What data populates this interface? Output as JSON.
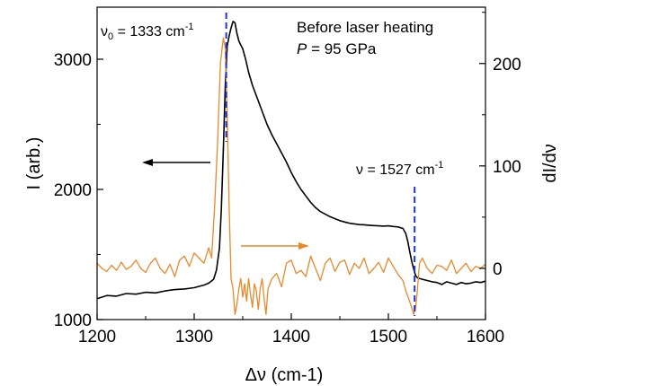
{
  "chart_data": {
    "type": "line",
    "xlabel": "Δν (cm-1)",
    "ylabel_left": "I (arb.)",
    "ylabel_right": "dI/dν",
    "xlim": [
      1200,
      1600
    ],
    "ylim_left": [
      1000,
      3400
    ],
    "ylim_right": [
      -50,
      255
    ],
    "x_ticks": [
      1200,
      1300,
      1400,
      1500,
      1600
    ],
    "y_left_ticks": [
      1000,
      2000,
      3000
    ],
    "y_right_ticks": [
      0,
      100,
      200
    ],
    "grid": false,
    "annotations": {
      "title_line1": "Before laser heating",
      "title_line2_var": "P",
      "title_line2_rest": " = 95 GPa",
      "nu0_label": "ν",
      "nu0_sub": "0",
      "nu0_value": " = 1333 cm",
      "nu0_exp": "-1",
      "nu_label": "ν = 1527 cm",
      "nu_exp": "-1"
    },
    "markers": [
      {
        "x": 1333,
        "color": "#1f35d6",
        "style": "dashed"
      },
      {
        "x": 1527,
        "color": "#1f35d6",
        "style": "dashed"
      }
    ],
    "arrows": [
      {
        "series": "intensity",
        "direction": "left",
        "color": "#000000"
      },
      {
        "series": "derivative",
        "direction": "right",
        "color": "#e8892a"
      }
    ],
    "series": [
      {
        "axis": "left",
        "color": "#000000",
        "x": [
          1200,
          1210,
          1220,
          1230,
          1240,
          1250,
          1260,
          1270,
          1280,
          1290,
          1300,
          1305,
          1310,
          1315,
          1320,
          1323,
          1326,
          1328,
          1330,
          1332,
          1334,
          1336,
          1338,
          1340,
          1342,
          1344,
          1346,
          1348,
          1350,
          1353,
          1356,
          1360,
          1365,
          1370,
          1375,
          1380,
          1385,
          1390,
          1395,
          1400,
          1405,
          1410,
          1415,
          1420,
          1425,
          1430,
          1435,
          1440,
          1445,
          1450,
          1455,
          1460,
          1465,
          1470,
          1475,
          1480,
          1485,
          1490,
          1495,
          1500,
          1505,
          1510,
          1515,
          1518,
          1520,
          1522,
          1524,
          1526,
          1528,
          1530,
          1535,
          1540,
          1545,
          1550,
          1555,
          1560,
          1565,
          1570,
          1575,
          1580,
          1585,
          1590,
          1595,
          1600
        ],
        "y": [
          1160,
          1185,
          1180,
          1200,
          1195,
          1210,
          1205,
          1220,
          1230,
          1235,
          1245,
          1255,
          1265,
          1280,
          1310,
          1380,
          1550,
          1850,
          2300,
          2800,
          3100,
          3180,
          3240,
          3290,
          3280,
          3200,
          3140,
          3110,
          3080,
          3000,
          2900,
          2800,
          2700,
          2600,
          2500,
          2420,
          2350,
          2280,
          2210,
          2130,
          2060,
          2000,
          1950,
          1900,
          1860,
          1830,
          1810,
          1790,
          1775,
          1760,
          1750,
          1740,
          1735,
          1730,
          1728,
          1725,
          1722,
          1720,
          1718,
          1720,
          1715,
          1712,
          1700,
          1660,
          1600,
          1520,
          1450,
          1390,
          1340,
          1320,
          1310,
          1300,
          1290,
          1285,
          1270,
          1290,
          1280,
          1270,
          1285,
          1275,
          1280,
          1290,
          1285,
          1295
        ]
      },
      {
        "axis": "right",
        "color": "#e8892a",
        "x": [
          1200,
          1205,
          1210,
          1215,
          1220,
          1225,
          1230,
          1235,
          1240,
          1245,
          1250,
          1255,
          1260,
          1265,
          1270,
          1275,
          1280,
          1285,
          1290,
          1295,
          1300,
          1305,
          1310,
          1315,
          1318,
          1321,
          1324,
          1327,
          1330,
          1332,
          1334,
          1336,
          1338,
          1340,
          1342,
          1344,
          1346,
          1348,
          1350,
          1352,
          1354,
          1356,
          1358,
          1360,
          1362,
          1364,
          1366,
          1368,
          1370,
          1372,
          1374,
          1376,
          1378,
          1380,
          1385,
          1390,
          1395,
          1400,
          1405,
          1410,
          1415,
          1420,
          1425,
          1430,
          1435,
          1440,
          1445,
          1450,
          1455,
          1460,
          1465,
          1470,
          1475,
          1480,
          1485,
          1490,
          1495,
          1500,
          1505,
          1510,
          1515,
          1518,
          1521,
          1524,
          1526,
          1528,
          1530,
          1532,
          1535,
          1540,
          1545,
          1550,
          1555,
          1560,
          1565,
          1570,
          1575,
          1580,
          1585,
          1590,
          1595,
          1600
        ],
        "y": [
          5,
          0,
          -3,
          3,
          -2,
          6,
          -1,
          2,
          8,
          0,
          -4,
          5,
          10,
          0,
          -5,
          4,
          -8,
          8,
          12,
          2,
          15,
          10,
          5,
          20,
          10,
          60,
          120,
          200,
          225,
          215,
          150,
          60,
          -10,
          -20,
          -45,
          -35,
          -20,
          -10,
          -28,
          -15,
          -32,
          -10,
          -25,
          -38,
          -15,
          -22,
          -40,
          -20,
          -10,
          -30,
          -45,
          -20,
          -15,
          -10,
          -5,
          -18,
          5,
          8,
          -5,
          -2,
          -8,
          12,
          0,
          -12,
          5,
          10,
          -3,
          6,
          8,
          -6,
          5,
          0,
          10,
          -5,
          0,
          6,
          -4,
          10,
          2,
          -6,
          -12,
          -22,
          -30,
          -38,
          -45,
          -40,
          -20,
          5,
          10,
          0,
          -5,
          3,
          2,
          -2,
          8,
          -5,
          0,
          5,
          -3,
          2,
          0,
          4
        ]
      }
    ]
  }
}
